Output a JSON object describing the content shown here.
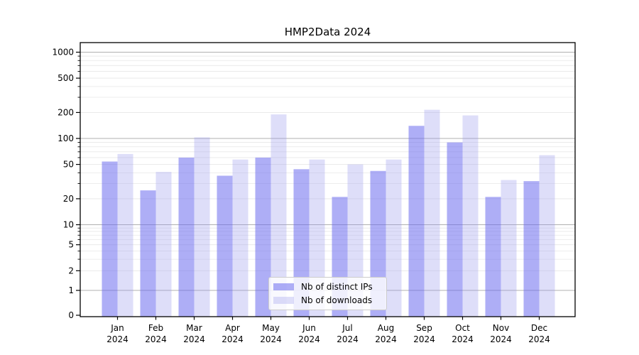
{
  "title": "HMP2Data 2024",
  "chart_data": {
    "type": "bar",
    "title": "HMP2Data 2024",
    "yscale": "symlog",
    "grid": true,
    "legend_position": "lower center",
    "y_ticks": [
      0,
      1,
      2,
      5,
      10,
      20,
      50,
      100,
      200,
      500,
      1000
    ],
    "ylim": [
      0,
      1260
    ],
    "months": [
      "Jan",
      "Feb",
      "Mar",
      "Apr",
      "May",
      "Jun",
      "Jul",
      "Aug",
      "Sep",
      "Oct",
      "Nov",
      "Dec"
    ],
    "year": "2024",
    "series": [
      {
        "name": "Nb of distinct IPs",
        "color": "#6c6cef",
        "alpha": 0.55,
        "values": [
          54,
          25,
          60,
          37,
          60,
          44,
          21,
          42,
          140,
          90,
          21,
          32
        ]
      },
      {
        "name": "Nb of downloads",
        "color": "#9898ec",
        "alpha": 0.32,
        "values": [
          66,
          41,
          103,
          57,
          190,
          57,
          50,
          57,
          215,
          185,
          33,
          64
        ]
      }
    ],
    "colors": {
      "major_grid": "#b0b0b0",
      "minor_grid": "#e7e7e7",
      "spine": "#000000"
    }
  }
}
